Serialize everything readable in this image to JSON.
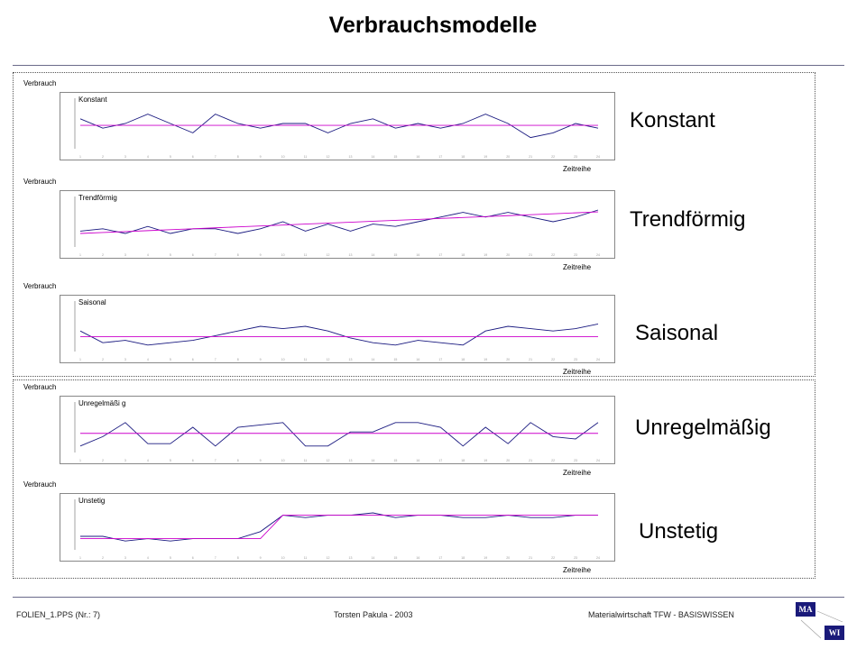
{
  "slide": {
    "title": "Verbrauchsmodelle"
  },
  "panels": [
    {
      "y_label": "Verbrauch",
      "x_label": "Zeitreihe",
      "inner_label": "Konstant",
      "big_label": "Konstant"
    },
    {
      "y_label": "Verbrauch",
      "x_label": "Zeitreihe",
      "inner_label": "Trendförmig",
      "big_label": "Trendförmig"
    },
    {
      "y_label": "Verbrauch",
      "x_label": "Zeitreihe",
      "inner_label": "Saisonal",
      "big_label": "Saisonal"
    },
    {
      "y_label": "Verbrauch",
      "x_label": "Zeitreihe",
      "inner_label": "Unregelmäßi g",
      "big_label": "Unregelmäßig"
    },
    {
      "y_label": "Verbrauch",
      "x_label": "Zeitreihe",
      "inner_label": "Unstetig",
      "big_label": "Unstetig"
    }
  ],
  "chart_data": [
    {
      "type": "line",
      "title": "Konstant",
      "xlabel": "Zeitreihe",
      "ylabel": "Verbrauch",
      "ylim": [
        0,
        10
      ],
      "x": [
        1,
        2,
        3,
        4,
        5,
        6,
        7,
        8,
        9,
        10,
        11,
        12,
        13,
        14,
        15,
        16,
        17,
        18,
        19,
        20,
        21,
        22,
        23,
        24
      ],
      "series": [
        {
          "values": [
            6,
            4,
            5,
            7,
            5,
            3,
            7,
            5,
            4,
            5,
            5,
            3,
            5,
            6,
            4,
            5,
            4,
            5,
            7,
            5,
            2,
            3,
            5,
            4
          ],
          "color": "#1a1a80"
        },
        {
          "values": [
            4.6,
            4.6,
            4.6,
            4.6,
            4.6,
            4.6,
            4.6,
            4.6,
            4.6,
            4.6,
            4.6,
            4.6,
            4.6,
            4.6,
            4.6,
            4.6,
            4.6,
            4.6,
            4.6,
            4.6,
            4.6,
            4.6,
            4.6,
            4.6
          ],
          "color": "#cc00cc"
        }
      ]
    },
    {
      "type": "line",
      "title": "Trendförmig",
      "xlabel": "Zeitreihe",
      "ylabel": "Verbrauch",
      "ylim": [
        0,
        10
      ],
      "x": [
        1,
        2,
        3,
        4,
        5,
        6,
        7,
        8,
        9,
        10,
        11,
        12,
        13,
        14,
        15,
        16,
        17,
        18,
        19,
        20,
        21,
        22,
        23,
        24
      ],
      "series": [
        {
          "values": [
            3,
            3.5,
            2.5,
            4,
            2.5,
            3.5,
            3.5,
            2.5,
            3.5,
            5,
            3,
            4.5,
            3,
            4.5,
            4,
            5,
            6,
            7,
            6,
            7,
            6,
            5,
            6,
            7.5
          ],
          "color": "#1a1a80"
        },
        {
          "values": [
            2.5,
            2.7,
            2.9,
            3.1,
            3.3,
            3.5,
            3.7,
            3.9,
            4.1,
            4.3,
            4.5,
            4.7,
            4.9,
            5.1,
            5.3,
            5.5,
            5.7,
            5.9,
            6.1,
            6.3,
            6.5,
            6.7,
            6.9,
            7.1
          ],
          "color": "#cc00cc"
        }
      ]
    },
    {
      "type": "line",
      "title": "Saisonal",
      "xlabel": "Zeitreihe",
      "ylabel": "Verbrauch",
      "ylim": [
        0,
        10
      ],
      "x": [
        1,
        2,
        3,
        4,
        5,
        6,
        7,
        8,
        9,
        10,
        11,
        12,
        13,
        14,
        15,
        16,
        17,
        18,
        19,
        20,
        21,
        22,
        23,
        24
      ],
      "series": [
        {
          "values": [
            4,
            1.5,
            2,
            1,
            1.5,
            2,
            3,
            4,
            5,
            4.5,
            5,
            4,
            2.5,
            1.5,
            1,
            2,
            1.5,
            1,
            4,
            5,
            4.5,
            4,
            4.5,
            5.5
          ],
          "color": "#1a1a80"
        },
        {
          "values": [
            2.8,
            2.8,
            2.8,
            2.8,
            2.8,
            2.8,
            2.8,
            2.8,
            2.8,
            2.8,
            2.8,
            2.8,
            2.8,
            2.8,
            2.8,
            2.8,
            2.8,
            2.8,
            2.8,
            2.8,
            2.8,
            2.8,
            2.8,
            2.8
          ],
          "color": "#cc00cc"
        }
      ]
    },
    {
      "type": "line",
      "title": "Unregelmäßi g",
      "xlabel": "Zeitreihe",
      "ylabel": "Verbrauch",
      "ylim": [
        0,
        10
      ],
      "x": [
        1,
        2,
        3,
        4,
        5,
        6,
        7,
        8,
        9,
        10,
        11,
        12,
        13,
        14,
        15,
        16,
        17,
        18,
        19,
        20,
        21,
        22,
        23,
        24
      ],
      "series": [
        {
          "values": [
            1,
            3,
            6,
            1.5,
            1.5,
            5,
            1,
            5,
            5.5,
            6,
            1,
            1,
            4,
            4,
            6,
            6,
            5,
            1,
            5,
            1.5,
            6,
            3,
            2.5,
            6
          ],
          "color": "#1a1a80"
        },
        {
          "values": [
            3.7,
            3.7,
            3.7,
            3.7,
            3.7,
            3.7,
            3.7,
            3.7,
            3.7,
            3.7,
            3.7,
            3.7,
            3.7,
            3.7,
            3.7,
            3.7,
            3.7,
            3.7,
            3.7,
            3.7,
            3.7,
            3.7,
            3.7,
            3.7
          ],
          "color": "#cc00cc"
        }
      ]
    },
    {
      "type": "line",
      "title": "Unstetig",
      "xlabel": "Zeitreihe",
      "ylabel": "Verbrauch",
      "ylim": [
        0,
        10
      ],
      "x": [
        1,
        2,
        3,
        4,
        5,
        6,
        7,
        8,
        9,
        10,
        11,
        12,
        13,
        14,
        15,
        16,
        17,
        18,
        19,
        20,
        21,
        22,
        23,
        24
      ],
      "series": [
        {
          "values": [
            2.5,
            2.5,
            1.5,
            2,
            1.5,
            2,
            2,
            2,
            3.5,
            7,
            6.5,
            7,
            7,
            7.5,
            6.5,
            7,
            7,
            6.5,
            6.5,
            7,
            6.5,
            6.5,
            7,
            7
          ],
          "color": "#1a1a80"
        },
        {
          "values": [
            2,
            2,
            2,
            2,
            2,
            2,
            2,
            2,
            2,
            7,
            7,
            7,
            7,
            7,
            7,
            7,
            7,
            7,
            7,
            7,
            7,
            7,
            7,
            7
          ],
          "color": "#cc00cc"
        }
      ]
    }
  ],
  "footer": {
    "left": "FOLIEN_1.PPS (Nr.: 7)",
    "center": "Torsten Pakula - 2003",
    "right": "Materialwirtschaft TFW - BASISWISSEN"
  },
  "logo": {
    "top": "MA",
    "bottom": "WI"
  }
}
